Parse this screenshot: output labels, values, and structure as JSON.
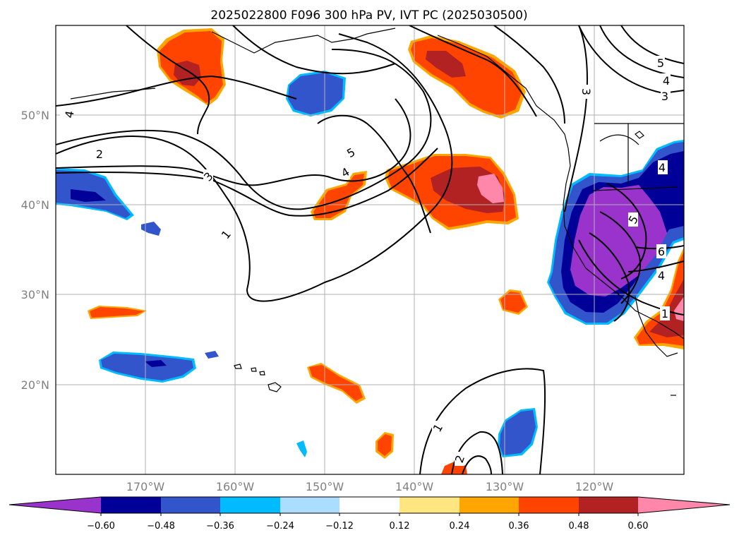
{
  "title": "2025022800 F096 300 hPa PV, IVT PC (2025030500)",
  "lat_labels": [
    "50°N",
    "40°N",
    "30°N",
    "20°N"
  ],
  "lon_labels": [
    "170°W",
    "160°W",
    "150°W",
    "140°W",
    "130°W",
    "120°W"
  ],
  "colorbar": {
    "ticks": [
      "−0.60",
      "−0.48",
      "−0.36",
      "−0.24",
      "−0.12",
      "0.12",
      "0.24",
      "0.36",
      "0.48",
      "0.60"
    ],
    "colors": [
      "#9933cc",
      "#000099",
      "#3355cc",
      "#00bbff",
      "#aaddff",
      "#ffffff",
      "#ffe680",
      "#ffa500",
      "#ff4400",
      "#b22222",
      "#ff88aa",
      "#ff88aa"
    ]
  },
  "contour_labels": [
    "1",
    "2",
    "3",
    "4",
    "5",
    "5",
    "4",
    "3",
    "4",
    "5",
    "6",
    "4",
    "1",
    "1",
    "2",
    "4",
    "3"
  ],
  "colors": {
    "purple": "#9933cc",
    "navy": "#000099",
    "blue": "#3355cc",
    "cyan": "#00bbff",
    "lightblue": "#aaddff",
    "yellow": "#ffe680",
    "orange": "#ffa500",
    "redorange": "#ff4400",
    "darkred": "#b22222",
    "pink": "#ff88aa"
  }
}
